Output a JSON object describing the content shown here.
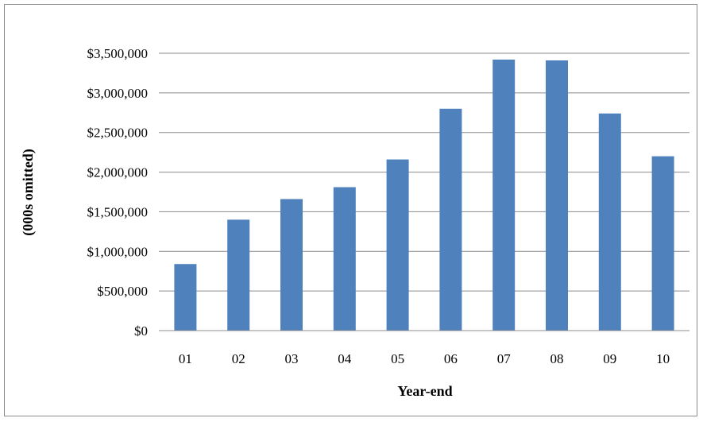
{
  "chart_data": {
    "type": "bar",
    "categories": [
      "01",
      "02",
      "03",
      "04",
      "05",
      "06",
      "07",
      "08",
      "09",
      "10"
    ],
    "values": [
      840000,
      1400000,
      1660000,
      1810000,
      2160000,
      2800000,
      3420000,
      3410000,
      2740000,
      2200000
    ],
    "xlabel": "Year-end",
    "ylabel": "(000s omitted)",
    "ylim": [
      0,
      3500000
    ],
    "y_ticks": [
      "$0",
      "$500,000",
      "$1,000,000",
      "$1,500,000",
      "$2,000,000",
      "$2,500,000",
      "$3,000,000",
      "$3,500,000"
    ],
    "bar_color": "#4f81bd",
    "grid": true,
    "legend": "none"
  }
}
